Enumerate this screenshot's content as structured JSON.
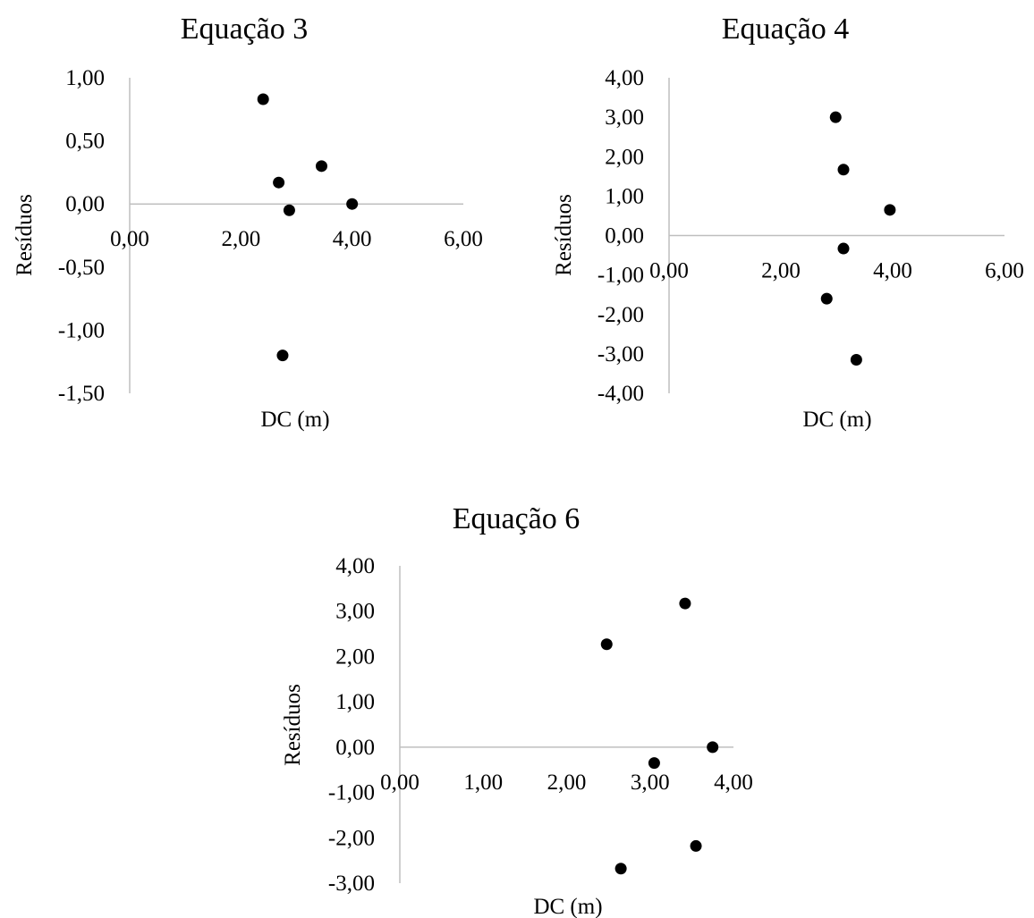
{
  "chart_data": [
    {
      "type": "scatter",
      "title": "Equação 3",
      "xlabel": "DC (m)",
      "ylabel": "Resíduos",
      "xlim": [
        0,
        6
      ],
      "ylim": [
        -1.5,
        1.0
      ],
      "xticks": [
        0,
        2,
        4,
        6
      ],
      "xtick_labels": [
        "0,00",
        "2,00",
        "4,00",
        "6,00"
      ],
      "yticks": [
        1.0,
        0.5,
        0.0,
        -0.5,
        -1.0,
        -1.5
      ],
      "ytick_labels": [
        "1,00",
        "0,50",
        "0,00",
        "-0,50",
        "-1,00",
        "-1,50"
      ],
      "grid": false,
      "x": [
        2.4,
        2.68,
        2.87,
        3.45,
        4.0,
        2.75
      ],
      "y": [
        0.83,
        0.17,
        -0.05,
        0.3,
        0.0,
        -1.2
      ],
      "colors": {
        "marker": "#000000",
        "axis": "#bfbfbf"
      }
    },
    {
      "type": "scatter",
      "title": "Equação 4",
      "xlabel": "DC (m)",
      "ylabel": "Resíduos",
      "xlim": [
        0,
        6
      ],
      "ylim": [
        -4.0,
        4.0
      ],
      "xticks": [
        0,
        2,
        4,
        6
      ],
      "xtick_labels": [
        "0,00",
        "2,00",
        "4,00",
        "6,00"
      ],
      "yticks": [
        4,
        3,
        2,
        1,
        0,
        -1,
        -2,
        -3,
        -4
      ],
      "ytick_labels": [
        "4,00",
        "3,00",
        "2,00",
        "1,00",
        "0,00",
        "-1,00",
        "-2,00",
        "-3,00",
        "-4,00"
      ],
      "grid": false,
      "x": [
        2.98,
        3.12,
        3.95,
        3.12,
        2.82,
        3.35
      ],
      "y": [
        3.0,
        1.67,
        0.65,
        -0.33,
        -1.6,
        -3.15
      ],
      "colors": {
        "marker": "#000000",
        "axis": "#bfbfbf"
      }
    },
    {
      "type": "scatter",
      "title": "Equação 6",
      "xlabel": "DC (m)",
      "ylabel": "Resíduos",
      "xlim": [
        0,
        4
      ],
      "ylim": [
        -3.0,
        4.0
      ],
      "xticks": [
        0,
        1,
        2,
        3,
        4
      ],
      "xtick_labels": [
        "0,00",
        "1,00",
        "2,00",
        "3,00",
        "4,00"
      ],
      "yticks": [
        4,
        3,
        2,
        1,
        0,
        -1,
        -2,
        -3
      ],
      "ytick_labels": [
        "4,00",
        "3,00",
        "2,00",
        "1,00",
        "0,00",
        "-1,00",
        "-2,00",
        "-3,00"
      ],
      "grid": false,
      "x": [
        3.42,
        2.48,
        3.75,
        3.05,
        3.55,
        2.65
      ],
      "y": [
        3.17,
        2.27,
        0.0,
        -0.35,
        -2.18,
        -2.68
      ],
      "colors": {
        "marker": "#000000",
        "axis": "#bfbfbf"
      }
    }
  ]
}
